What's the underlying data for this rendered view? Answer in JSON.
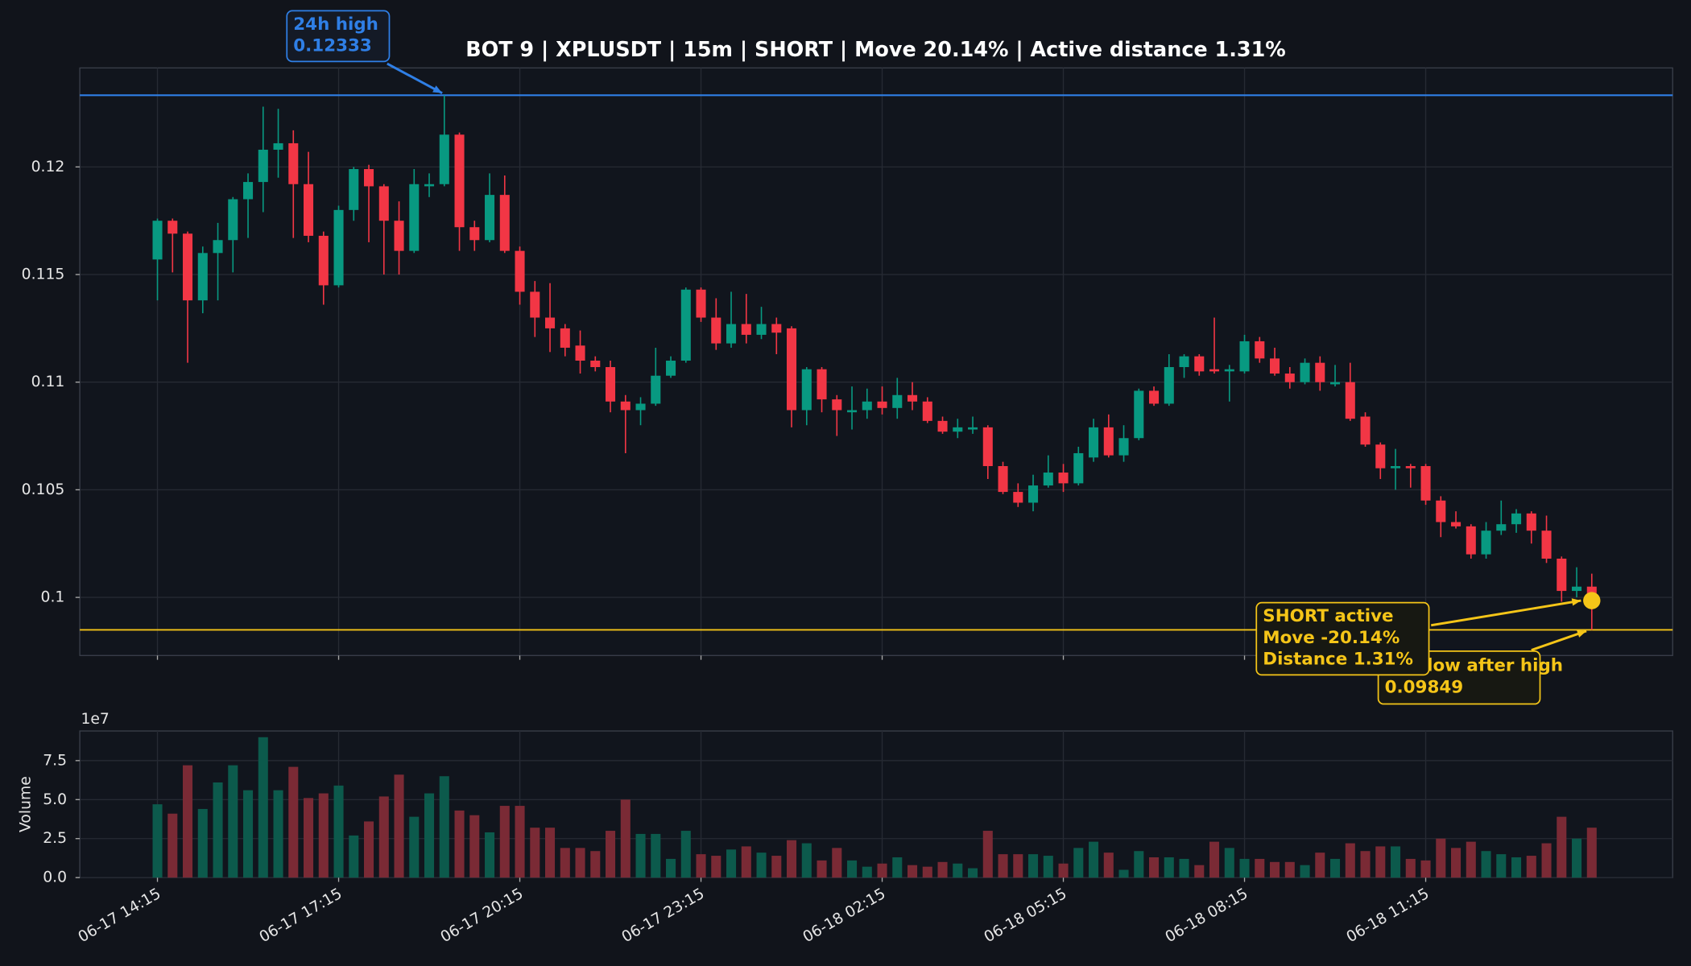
{
  "chart_data": {
    "type": "candlestick",
    "title": "BOT 9 | XPLUSDT | 15m | SHORT | Move 20.14% | Active distance 1.31%",
    "categories": [
      "06-17 14:15",
      null,
      null,
      null,
      null,
      null,
      null,
      null,
      null,
      null,
      null,
      null,
      "06-17 17:15",
      null,
      null,
      null,
      null,
      null,
      null,
      null,
      null,
      null,
      null,
      null,
      "06-17 20:15",
      null,
      null,
      null,
      null,
      null,
      null,
      null,
      null,
      null,
      null,
      null,
      "06-17 23:15",
      null,
      null,
      null,
      null,
      null,
      null,
      null,
      null,
      null,
      null,
      null,
      "06-18 02:15",
      null,
      null,
      null,
      null,
      null,
      null,
      null,
      null,
      null,
      null,
      null,
      "06-18 05:15",
      null,
      null,
      null,
      null,
      null,
      null,
      null,
      null,
      null,
      null,
      null,
      "06-18 08:15",
      null,
      null,
      null,
      null,
      null,
      null,
      null,
      null,
      null,
      null,
      null,
      "06-18 11:15",
      null,
      null,
      null,
      null,
      null,
      null,
      null,
      null,
      null,
      null,
      null
    ],
    "open": [
      0.1157,
      0.1175,
      0.1169,
      0.1138,
      0.116,
      0.1166,
      0.1185,
      0.1193,
      0.1208,
      0.1211,
      0.1192,
      0.1168,
      0.1145,
      0.118,
      0.1199,
      0.1191,
      0.1175,
      0.1161,
      0.1191,
      0.1192,
      0.1215,
      0.1172,
      0.1166,
      0.1187,
      0.1161,
      0.1142,
      0.113,
      0.1125,
      0.1117,
      0.111,
      0.1107,
      0.1091,
      0.1087,
      0.109,
      0.1103,
      0.111,
      0.1143,
      0.113,
      0.1118,
      0.1127,
      0.1122,
      0.1127,
      0.1125,
      0.1087,
      0.1106,
      0.1092,
      0.1086,
      0.1087,
      0.1091,
      0.1088,
      0.1094,
      0.1091,
      0.1082,
      0.1077,
      0.1078,
      0.1079,
      0.1061,
      0.1049,
      0.1044,
      0.1052,
      0.1058,
      0.1053,
      0.1065,
      0.1079,
      0.1066,
      0.1074,
      0.1096,
      0.109,
      0.1107,
      0.1112,
      0.1106,
      0.1105,
      0.1105,
      0.1119,
      0.1111,
      0.1104,
      0.11,
      0.1109,
      0.1099,
      0.11,
      0.1084,
      0.1071,
      0.106,
      0.1061,
      0.1061,
      0.1045,
      0.1035,
      0.1033,
      0.102,
      0.1031,
      0.1034,
      0.1039,
      0.1031,
      0.1018,
      0.1003,
      0.1005
    ],
    "high": [
      0.1176,
      0.1176,
      0.117,
      0.1163,
      0.1174,
      0.1186,
      0.1197,
      0.1228,
      0.1227,
      0.1217,
      0.1207,
      0.117,
      0.1182,
      0.12,
      0.1201,
      0.1192,
      0.1184,
      0.1199,
      0.1197,
      0.12333,
      0.1216,
      0.1175,
      0.1197,
      0.1196,
      0.1163,
      0.1147,
      0.1146,
      0.1127,
      0.1124,
      0.1112,
      0.111,
      0.1094,
      0.1093,
      0.1116,
      0.1112,
      0.1144,
      0.1144,
      0.1139,
      0.1142,
      0.1141,
      0.1135,
      0.113,
      0.1126,
      0.1107,
      0.1107,
      0.1094,
      0.1098,
      0.1097,
      0.1098,
      0.1102,
      0.11,
      0.1093,
      0.1084,
      0.1083,
      0.1084,
      0.108,
      0.1063,
      0.1053,
      0.1057,
      0.1066,
      0.1062,
      0.107,
      0.1083,
      0.1085,
      0.108,
      0.1097,
      0.1098,
      0.1113,
      0.1113,
      0.1113,
      0.113,
      0.1108,
      0.1122,
      0.1121,
      0.1116,
      0.1107,
      0.1111,
      0.1112,
      0.1108,
      0.1109,
      0.1086,
      0.1072,
      0.1069,
      0.1062,
      0.1062,
      0.1047,
      0.104,
      0.1034,
      0.1035,
      0.1045,
      0.1041,
      0.104,
      0.1038,
      0.1019,
      0.1014,
      0.1011
    ],
    "low": [
      0.1138,
      0.1151,
      0.1109,
      0.1132,
      0.1138,
      0.1151,
      0.1167,
      0.1179,
      0.1195,
      0.1167,
      0.1165,
      0.1136,
      0.1144,
      0.1175,
      0.1165,
      0.115,
      0.115,
      0.116,
      0.1186,
      0.1191,
      0.1161,
      0.1161,
      0.1165,
      0.116,
      0.1136,
      0.1121,
      0.1114,
      0.1112,
      0.1104,
      0.1105,
      0.1086,
      0.1067,
      0.108,
      0.1089,
      0.1102,
      0.1109,
      0.1128,
      0.1115,
      0.1116,
      0.1118,
      0.112,
      0.1113,
      0.1079,
      0.108,
      0.1086,
      0.1075,
      0.1078,
      0.1083,
      0.1085,
      0.1083,
      0.1087,
      0.1081,
      0.1076,
      0.1074,
      0.1076,
      0.1055,
      0.1048,
      0.1042,
      0.104,
      0.1051,
      0.1049,
      0.1052,
      0.1063,
      0.1065,
      0.1063,
      0.1073,
      0.1089,
      0.1089,
      0.1102,
      0.1103,
      0.1104,
      0.1091,
      0.1104,
      0.1109,
      0.1103,
      0.1097,
      0.1099,
      0.1096,
      0.1098,
      0.1082,
      0.107,
      0.1055,
      0.105,
      0.1051,
      0.1043,
      0.1028,
      0.1032,
      0.1018,
      0.1018,
      0.1029,
      0.103,
      0.1025,
      0.1016,
      0.0998,
      0.1,
      0.09849
    ],
    "close": [
      0.1175,
      0.1169,
      0.1138,
      0.116,
      0.1166,
      0.1185,
      0.1193,
      0.1208,
      0.1211,
      0.1192,
      0.1168,
      0.1145,
      0.118,
      0.1199,
      0.1191,
      0.1175,
      0.1161,
      0.1192,
      0.1192,
      0.1215,
      0.1172,
      0.1166,
      0.1187,
      0.1161,
      0.1142,
      0.113,
      0.1125,
      0.1116,
      0.111,
      0.1107,
      0.1091,
      0.1087,
      0.109,
      0.1103,
      0.111,
      0.1143,
      0.113,
      0.1118,
      0.1127,
      0.1122,
      0.1127,
      0.1123,
      0.1087,
      0.1106,
      0.1092,
      0.1087,
      0.1087,
      0.1091,
      0.1088,
      0.1094,
      0.1091,
      0.1082,
      0.1077,
      0.1079,
      0.1079,
      0.1061,
      0.1049,
      0.1044,
      0.1052,
      0.1058,
      0.1053,
      0.1067,
      0.1079,
      0.1066,
      0.1074,
      0.1096,
      0.109,
      0.1107,
      0.1112,
      0.1105,
      0.1105,
      0.1106,
      0.1119,
      0.1111,
      0.1104,
      0.11,
      0.1109,
      0.11,
      0.11,
      0.1083,
      0.1071,
      0.106,
      0.1061,
      0.106,
      0.1045,
      0.1035,
      0.1033,
      0.102,
      0.1031,
      0.1034,
      0.1039,
      0.1031,
      0.1018,
      0.1003,
      0.1005,
      0.09985
    ],
    "up_color": "#089981",
    "down_color": "#f23645",
    "ylim": [
      0.0973,
      0.1246
    ],
    "yticks": [
      0.1,
      0.105,
      0.11,
      0.115,
      0.12
    ],
    "grid": true,
    "high_marker": {
      "label": "24h high",
      "value": 0.12333,
      "color": "#2f7fe6"
    },
    "low_marker": {
      "label": "24h low after high",
      "value": 0.09849,
      "color": "#f5c518"
    },
    "position_note": {
      "lines": [
        "SHORT active",
        "Move -20.14%",
        "Distance 1.31%"
      ],
      "color": "#f5c518"
    },
    "volume": {
      "ylabel": "Volume",
      "offset_label": "1e7",
      "up_color": "#0c5a4c",
      "down_color": "#7a2a35",
      "ylim": [
        0,
        9.4
      ],
      "yticks": [
        {
          "value": 0,
          "label": "0.0"
        },
        2.5,
        {
          "value": 5,
          "label": "5.0"
        },
        7.5
      ],
      "values": [
        4.7,
        4.1,
        7.2,
        4.4,
        6.1,
        7.2,
        5.6,
        9.0,
        5.6,
        7.1,
        5.1,
        5.4,
        5.9,
        2.7,
        3.6,
        5.2,
        6.6,
        3.9,
        5.4,
        6.5,
        4.3,
        4.0,
        2.9,
        4.6,
        4.6,
        3.2,
        3.2,
        1.9,
        1.9,
        1.7,
        3.0,
        5.0,
        2.8,
        2.8,
        1.2,
        3.0,
        1.5,
        1.4,
        1.8,
        2.0,
        1.6,
        1.4,
        2.4,
        2.2,
        1.1,
        1.9,
        1.1,
        0.7,
        0.9,
        1.3,
        0.8,
        0.7,
        1.0,
        0.9,
        0.6,
        3.0,
        1.5,
        1.5,
        1.5,
        1.4,
        0.9,
        1.9,
        2.3,
        1.6,
        0.5,
        1.7,
        1.3,
        1.3,
        1.2,
        0.8,
        2.3,
        1.9,
        1.2,
        1.2,
        1.0,
        1.0,
        0.8,
        1.6,
        1.2,
        2.2,
        1.7,
        2.0,
        2.0,
        1.2,
        1.1,
        2.5,
        1.9,
        2.3,
        1.7,
        1.5,
        1.3,
        1.4,
        2.2,
        3.9,
        2.5,
        3.2
      ]
    }
  }
}
